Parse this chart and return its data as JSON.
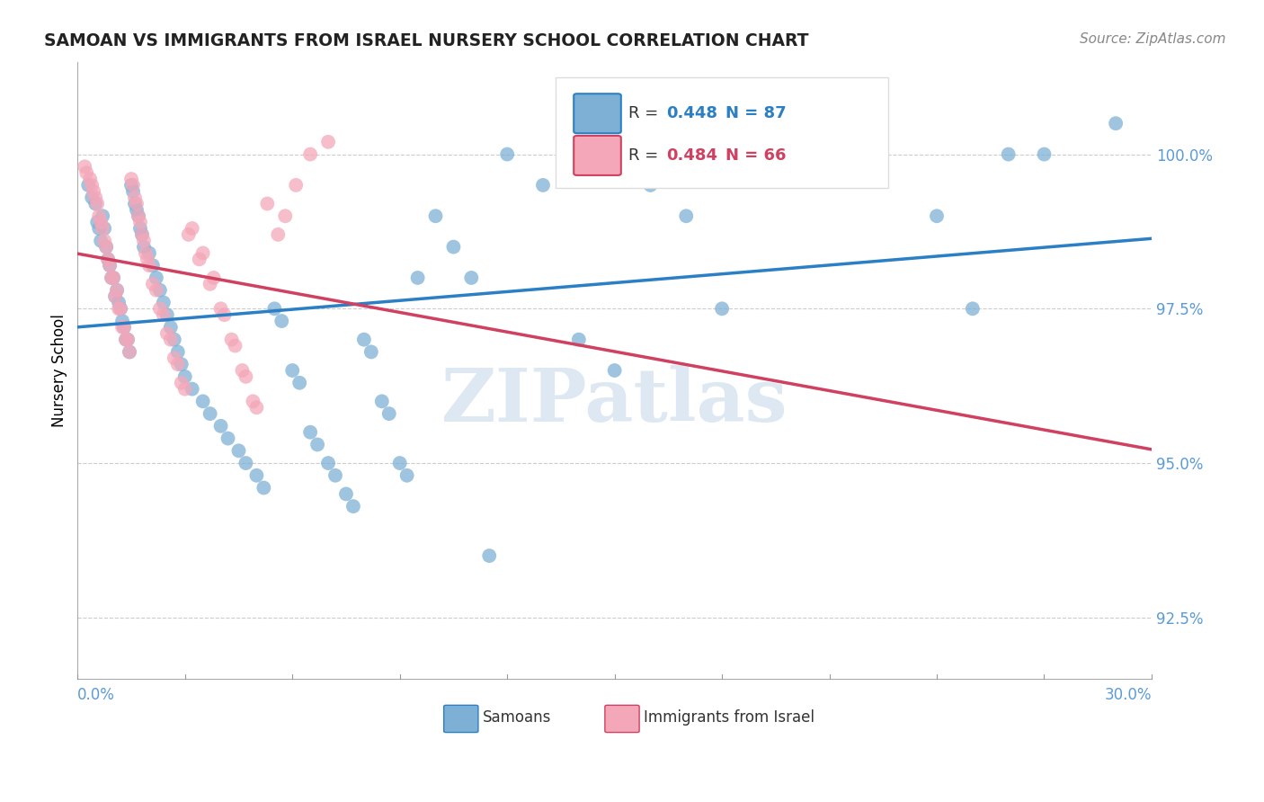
{
  "title": "SAMOAN VS IMMIGRANTS FROM ISRAEL NURSERY SCHOOL CORRELATION CHART",
  "source": "Source: ZipAtlas.com",
  "ylabel": "Nursery School",
  "y_ticks": [
    92.5,
    95.0,
    97.5,
    100.0
  ],
  "y_tick_labels": [
    "92.5%",
    "95.0%",
    "97.5%",
    "100.0%"
  ],
  "xlim": [
    0.0,
    30.0
  ],
  "ylim": [
    91.5,
    101.5
  ],
  "label_samoans": "Samoans",
  "label_israel": "Immigrants from Israel",
  "blue_color": "#7EB0D5",
  "pink_color": "#F4A7B9",
  "trendline_blue_color": "#2B7FC4",
  "trendline_pink_color": "#D04060",
  "r_blue_color": "#2B7FC4",
  "r_pink_color": "#D04060",
  "watermark_color": "#C8D9EA",
  "blue_x": [
    0.3,
    0.5,
    0.6,
    0.7,
    0.8,
    0.9,
    1.0,
    1.1,
    1.2,
    1.3,
    1.4,
    1.5,
    1.6,
    1.7,
    1.8,
    2.0,
    2.2,
    2.4,
    2.6,
    2.8,
    3.0,
    3.5,
    4.0,
    4.5,
    5.0,
    5.5,
    6.0,
    6.5,
    7.0,
    7.5,
    8.0,
    8.5,
    9.0,
    9.5,
    10.0,
    10.5,
    11.0,
    12.0,
    13.0,
    14.0,
    15.0,
    16.0,
    17.0,
    18.0,
    19.0,
    20.0,
    22.0,
    24.0,
    25.0,
    26.0,
    27.0,
    0.4,
    0.55,
    0.65,
    0.75,
    0.85,
    0.95,
    1.05,
    1.15,
    1.25,
    1.35,
    1.45,
    1.55,
    1.65,
    1.75,
    1.85,
    2.1,
    2.3,
    2.5,
    2.7,
    2.9,
    3.2,
    3.7,
    4.2,
    4.7,
    5.2,
    5.7,
    6.2,
    6.7,
    7.2,
    7.7,
    8.2,
    8.7,
    9.2,
    29.0,
    11.5
  ],
  "blue_y": [
    99.5,
    99.2,
    98.8,
    99.0,
    98.5,
    98.2,
    98.0,
    97.8,
    97.5,
    97.2,
    97.0,
    99.5,
    99.2,
    99.0,
    98.7,
    98.4,
    98.0,
    97.6,
    97.2,
    96.8,
    96.4,
    96.0,
    95.6,
    95.2,
    94.8,
    97.5,
    96.5,
    95.5,
    95.0,
    94.5,
    97.0,
    96.0,
    95.0,
    98.0,
    99.0,
    98.5,
    98.0,
    100.0,
    99.5,
    97.0,
    96.5,
    99.5,
    99.0,
    97.5,
    99.8,
    100.0,
    100.0,
    99.0,
    97.5,
    100.0,
    100.0,
    99.3,
    98.9,
    98.6,
    98.8,
    98.3,
    98.0,
    97.7,
    97.6,
    97.3,
    97.0,
    96.8,
    99.4,
    99.1,
    98.8,
    98.5,
    98.2,
    97.8,
    97.4,
    97.0,
    96.6,
    96.2,
    95.8,
    95.4,
    95.0,
    94.6,
    97.3,
    96.3,
    95.3,
    94.8,
    94.3,
    96.8,
    95.8,
    94.8,
    100.5,
    93.5
  ],
  "pink_x": [
    0.2,
    0.4,
    0.5,
    0.6,
    0.7,
    0.8,
    0.9,
    1.0,
    1.1,
    1.2,
    1.3,
    1.4,
    1.5,
    1.6,
    1.7,
    1.8,
    1.9,
    2.0,
    2.2,
    2.4,
    2.6,
    2.8,
    3.0,
    3.2,
    3.5,
    3.8,
    4.0,
    4.3,
    4.6,
    4.9,
    0.35,
    0.55,
    0.65,
    0.75,
    0.85,
    0.95,
    1.05,
    1.15,
    1.25,
    1.35,
    1.45,
    1.55,
    1.65,
    1.75,
    1.85,
    1.95,
    2.1,
    2.3,
    2.5,
    2.7,
    2.9,
    3.1,
    3.4,
    3.7,
    4.1,
    4.4,
    4.7,
    5.0,
    5.3,
    5.6,
    0.25,
    0.45,
    5.8,
    6.1,
    6.5,
    7.0
  ],
  "pink_y": [
    99.8,
    99.5,
    99.3,
    99.0,
    98.8,
    98.5,
    98.2,
    98.0,
    97.8,
    97.5,
    97.2,
    97.0,
    99.6,
    99.3,
    99.0,
    98.7,
    98.4,
    98.2,
    97.8,
    97.4,
    97.0,
    96.6,
    96.2,
    98.8,
    98.4,
    98.0,
    97.5,
    97.0,
    96.5,
    96.0,
    99.6,
    99.2,
    98.9,
    98.6,
    98.3,
    98.0,
    97.7,
    97.5,
    97.2,
    97.0,
    96.8,
    99.5,
    99.2,
    98.9,
    98.6,
    98.3,
    97.9,
    97.5,
    97.1,
    96.7,
    96.3,
    98.7,
    98.3,
    97.9,
    97.4,
    96.9,
    96.4,
    95.9,
    99.2,
    98.7,
    99.7,
    99.4,
    99.0,
    99.5,
    100.0,
    100.2
  ]
}
